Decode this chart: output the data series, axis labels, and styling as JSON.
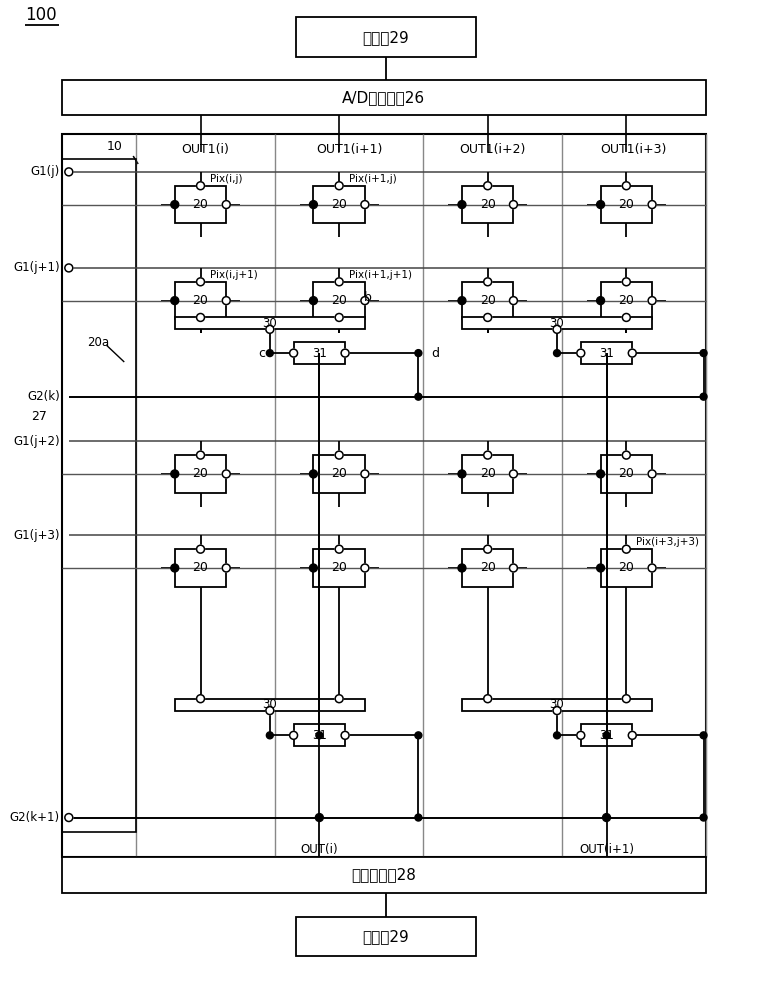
{
  "bg_color": "#ffffff",
  "fig_width": 7.62,
  "fig_height": 10.0,
  "label_100": "100",
  "label_AD": "A/D转换电路26",
  "label_selector": "选择器电路28",
  "label_control": "控制部29",
  "label_10": "10",
  "label_27": "27",
  "label_20a": "20a",
  "out1_labels": [
    "OUT1(i)",
    "OUT1(i+1)",
    "OUT1(i+2)",
    "OUT1(i+3)"
  ],
  "out_labels": [
    "OUT(i)",
    "OUT(i+1)"
  ],
  "pix_labels_map": {
    "0,0": "Pix(i,j)",
    "1,0": "Pix(i+1,j)",
    "0,1": "Pix(i,j+1)",
    "1,1": "Pix(i+1,j+1)",
    "3,3": "Pix(i+3,j+3)"
  },
  "label_b": "b",
  "label_c": "c",
  "label_d": "d"
}
